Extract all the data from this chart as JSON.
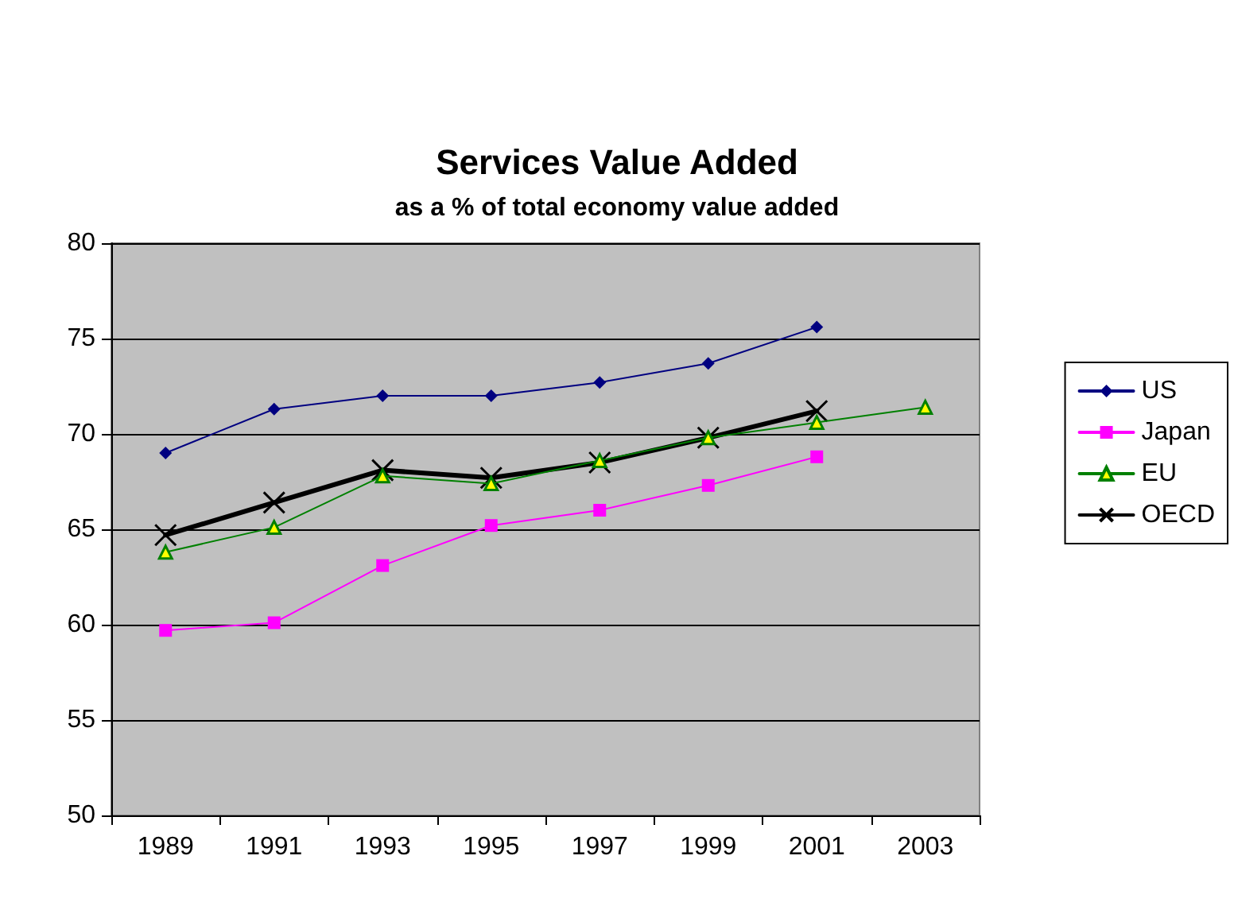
{
  "chart_data": {
    "type": "line",
    "title": "Services Value Added",
    "subtitle": "as a % of total economy value added",
    "categories": [
      "1989",
      "1991",
      "1993",
      "1995",
      "1997",
      "1999",
      "2001",
      "2003"
    ],
    "series": [
      {
        "name": "US",
        "color": "#000080",
        "marker": "diamond",
        "values": [
          69.0,
          71.3,
          72.0,
          72.0,
          72.7,
          73.7,
          75.6,
          null
        ]
      },
      {
        "name": "Japan",
        "color": "#ff00ff",
        "marker": "square",
        "values": [
          59.7,
          60.1,
          63.1,
          65.2,
          66.0,
          67.3,
          68.8,
          null
        ]
      },
      {
        "name": "EU",
        "color": "#008000",
        "marker": "triangle",
        "values": [
          63.8,
          65.1,
          67.8,
          67.4,
          68.6,
          69.8,
          70.6,
          71.4
        ]
      },
      {
        "name": "OECD",
        "color": "#000000",
        "marker": "cross",
        "values": [
          64.7,
          66.4,
          68.1,
          67.7,
          68.5,
          69.8,
          71.2,
          null
        ]
      }
    ],
    "ylim": [
      50,
      80
    ],
    "yticks": [
      50,
      55,
      60,
      65,
      70,
      75,
      80
    ],
    "grid": "y",
    "legend": "right",
    "line_style": "solid"
  }
}
